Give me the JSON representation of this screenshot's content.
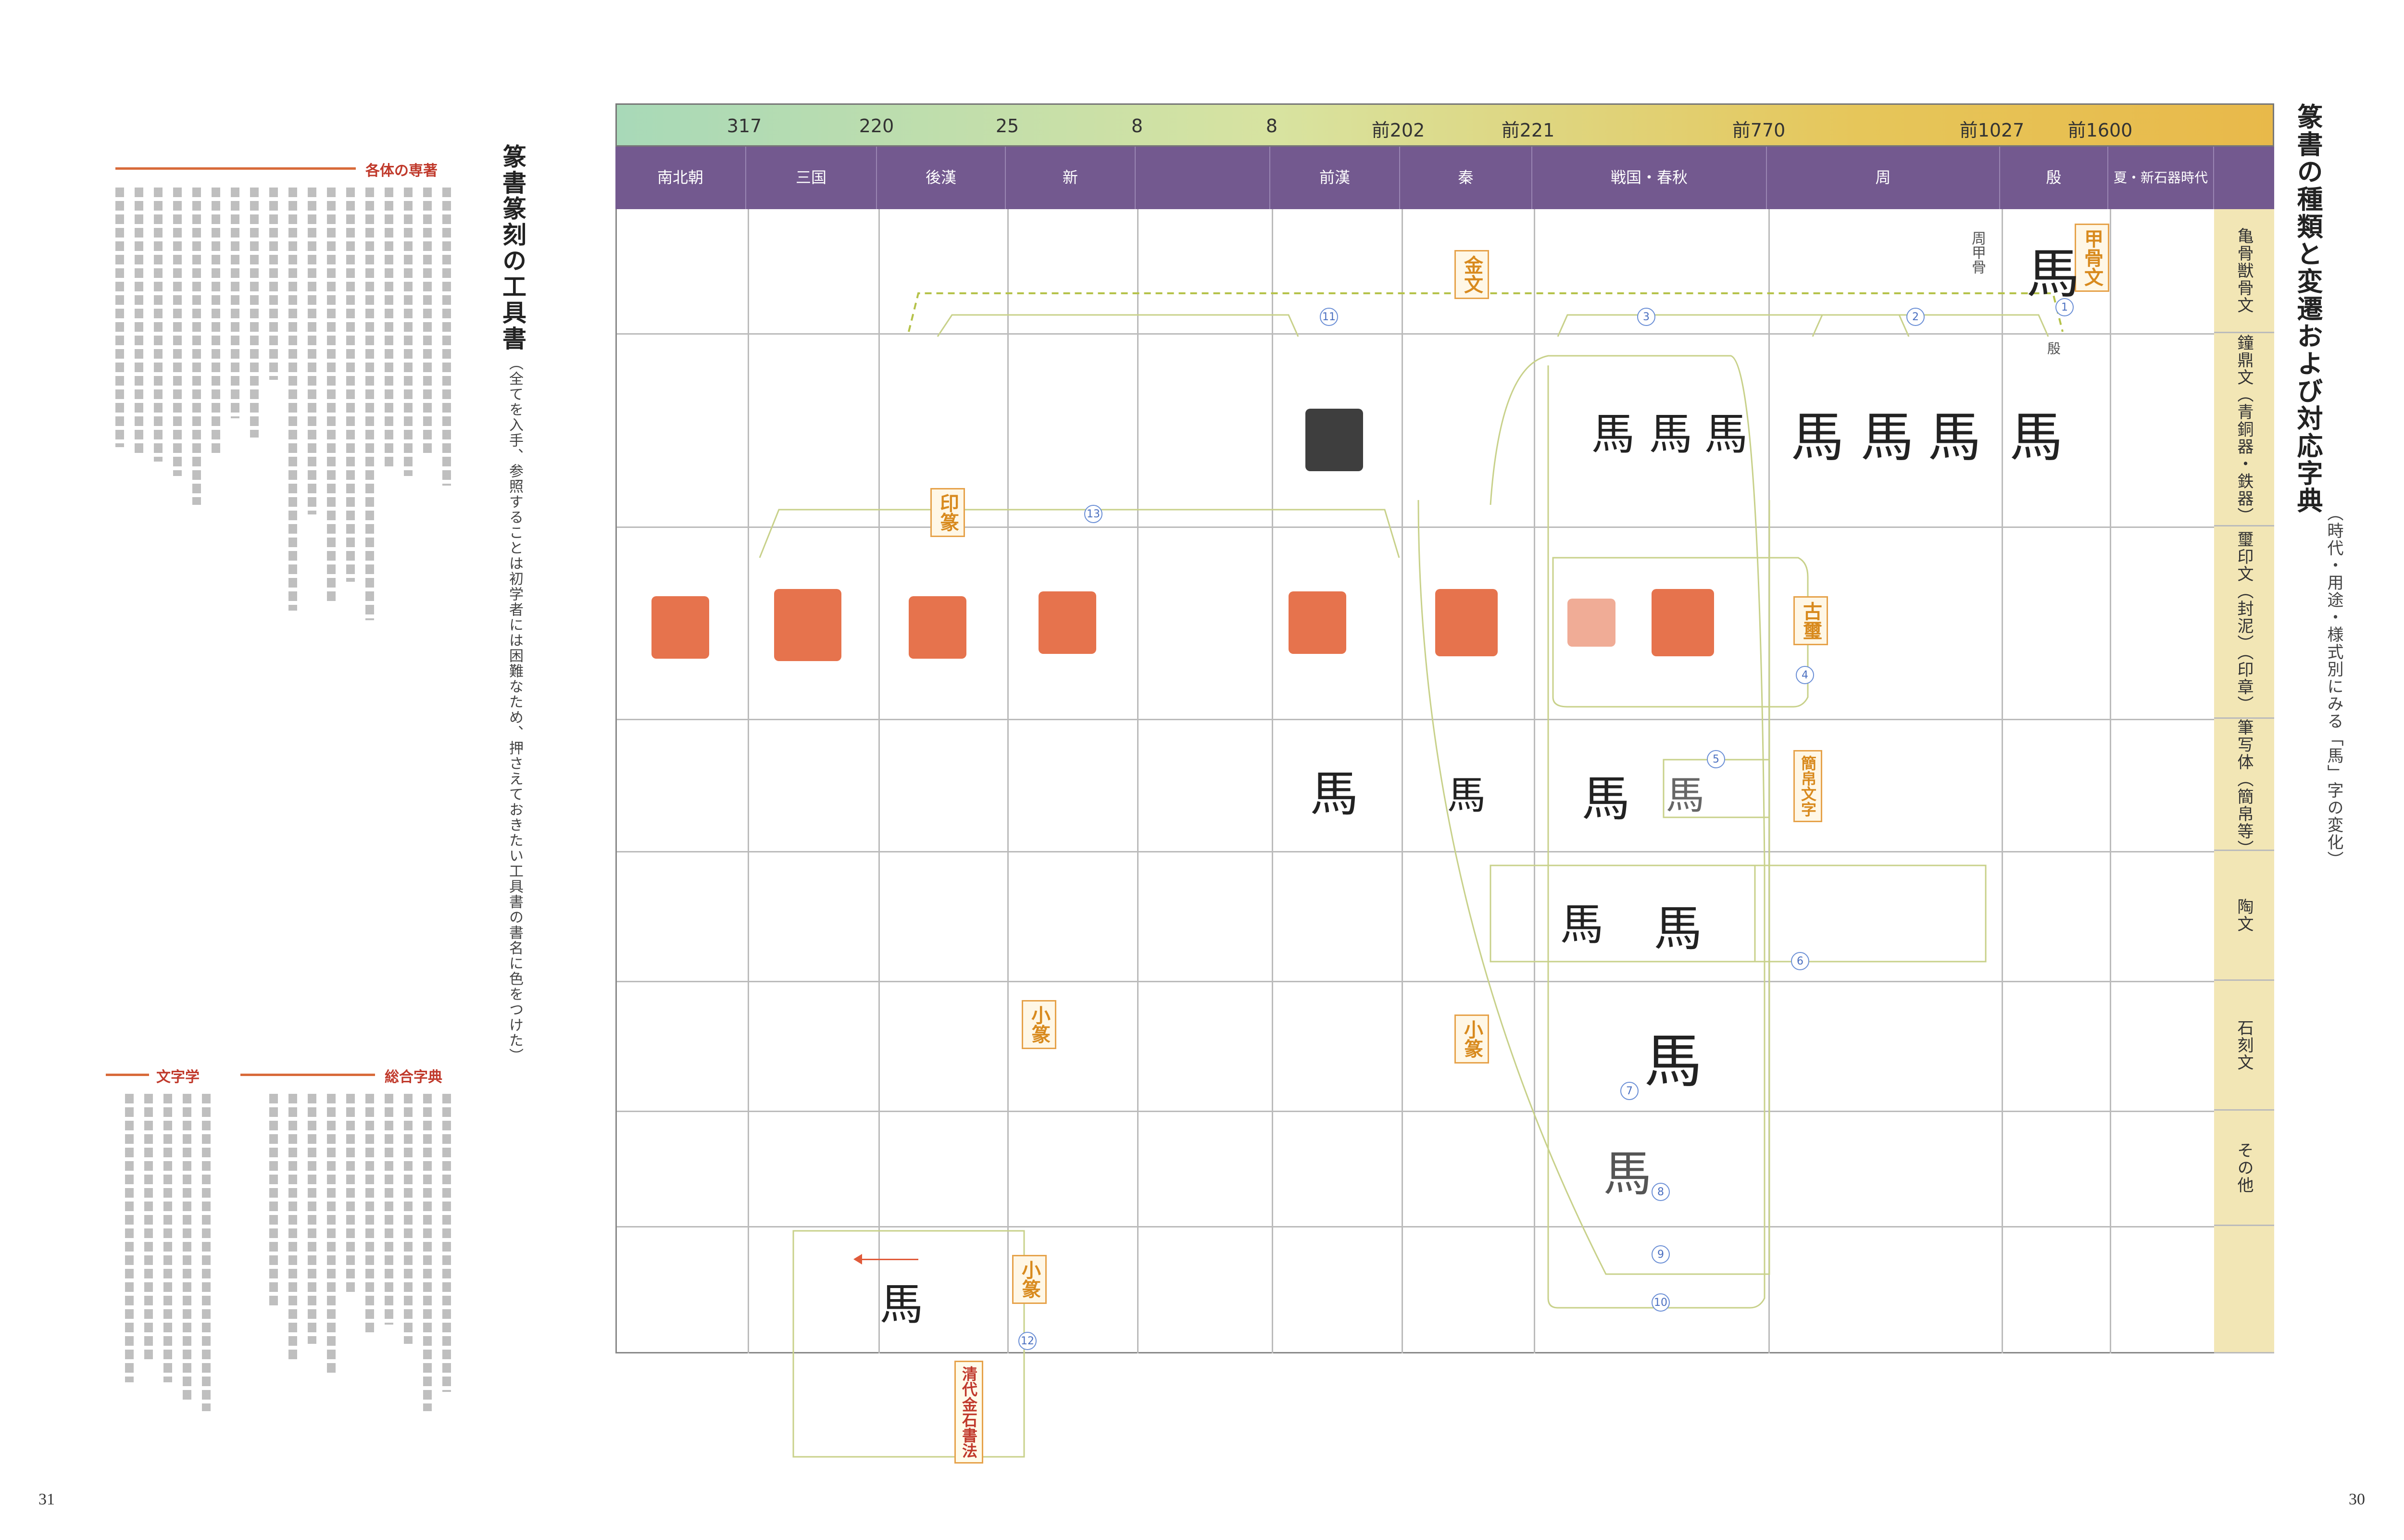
{
  "page_numbers": {
    "left": "31",
    "right": "30"
  },
  "tools": {
    "title": "篆書篆刻の工具書",
    "note": "（全てを入手、参照することは初学者には困難なため、押さえておきたい工具書の書名に色をつけた）",
    "sections": {
      "seal_works": "各体の専著",
      "literature": "文字学",
      "dictionary": "総合字典"
    }
  },
  "chart": {
    "title": "篆書の種類と変遷および対応字典",
    "subtitle": "（時代・用途・様式別にみる「馬」字の変化）",
    "dates": [
      "317",
      "220",
      "25",
      "8",
      "8",
      "前202",
      "前221",
      "前770",
      "前1027",
      "前1600"
    ],
    "eras": [
      "南北朝",
      "三国",
      "後漢",
      "新",
      "",
      "前漢",
      "秦",
      "戦国・春秋",
      "周",
      "殷",
      "夏・新石器時代"
    ],
    "rows": [
      "亀骨獣骨文",
      "鐘鼎文（青銅器・鉄器）",
      "璽印文（封泥）（印章）",
      "筆写体（簡帛等）",
      "陶文",
      "石刻文",
      "その他",
      ""
    ],
    "badges": {
      "oracle": "甲骨文",
      "bronze": "金文",
      "seal": "印篆",
      "ancient_seal": "古璽",
      "bamboo": "簡帛文字",
      "small_seal": "小篆",
      "small_seal2": "小篆",
      "small_seal3": "小篆",
      "qing": "清代金石書法"
    },
    "glyph": "馬",
    "caption_oracle": "周甲骨",
    "caption_shang": "殷"
  }
}
